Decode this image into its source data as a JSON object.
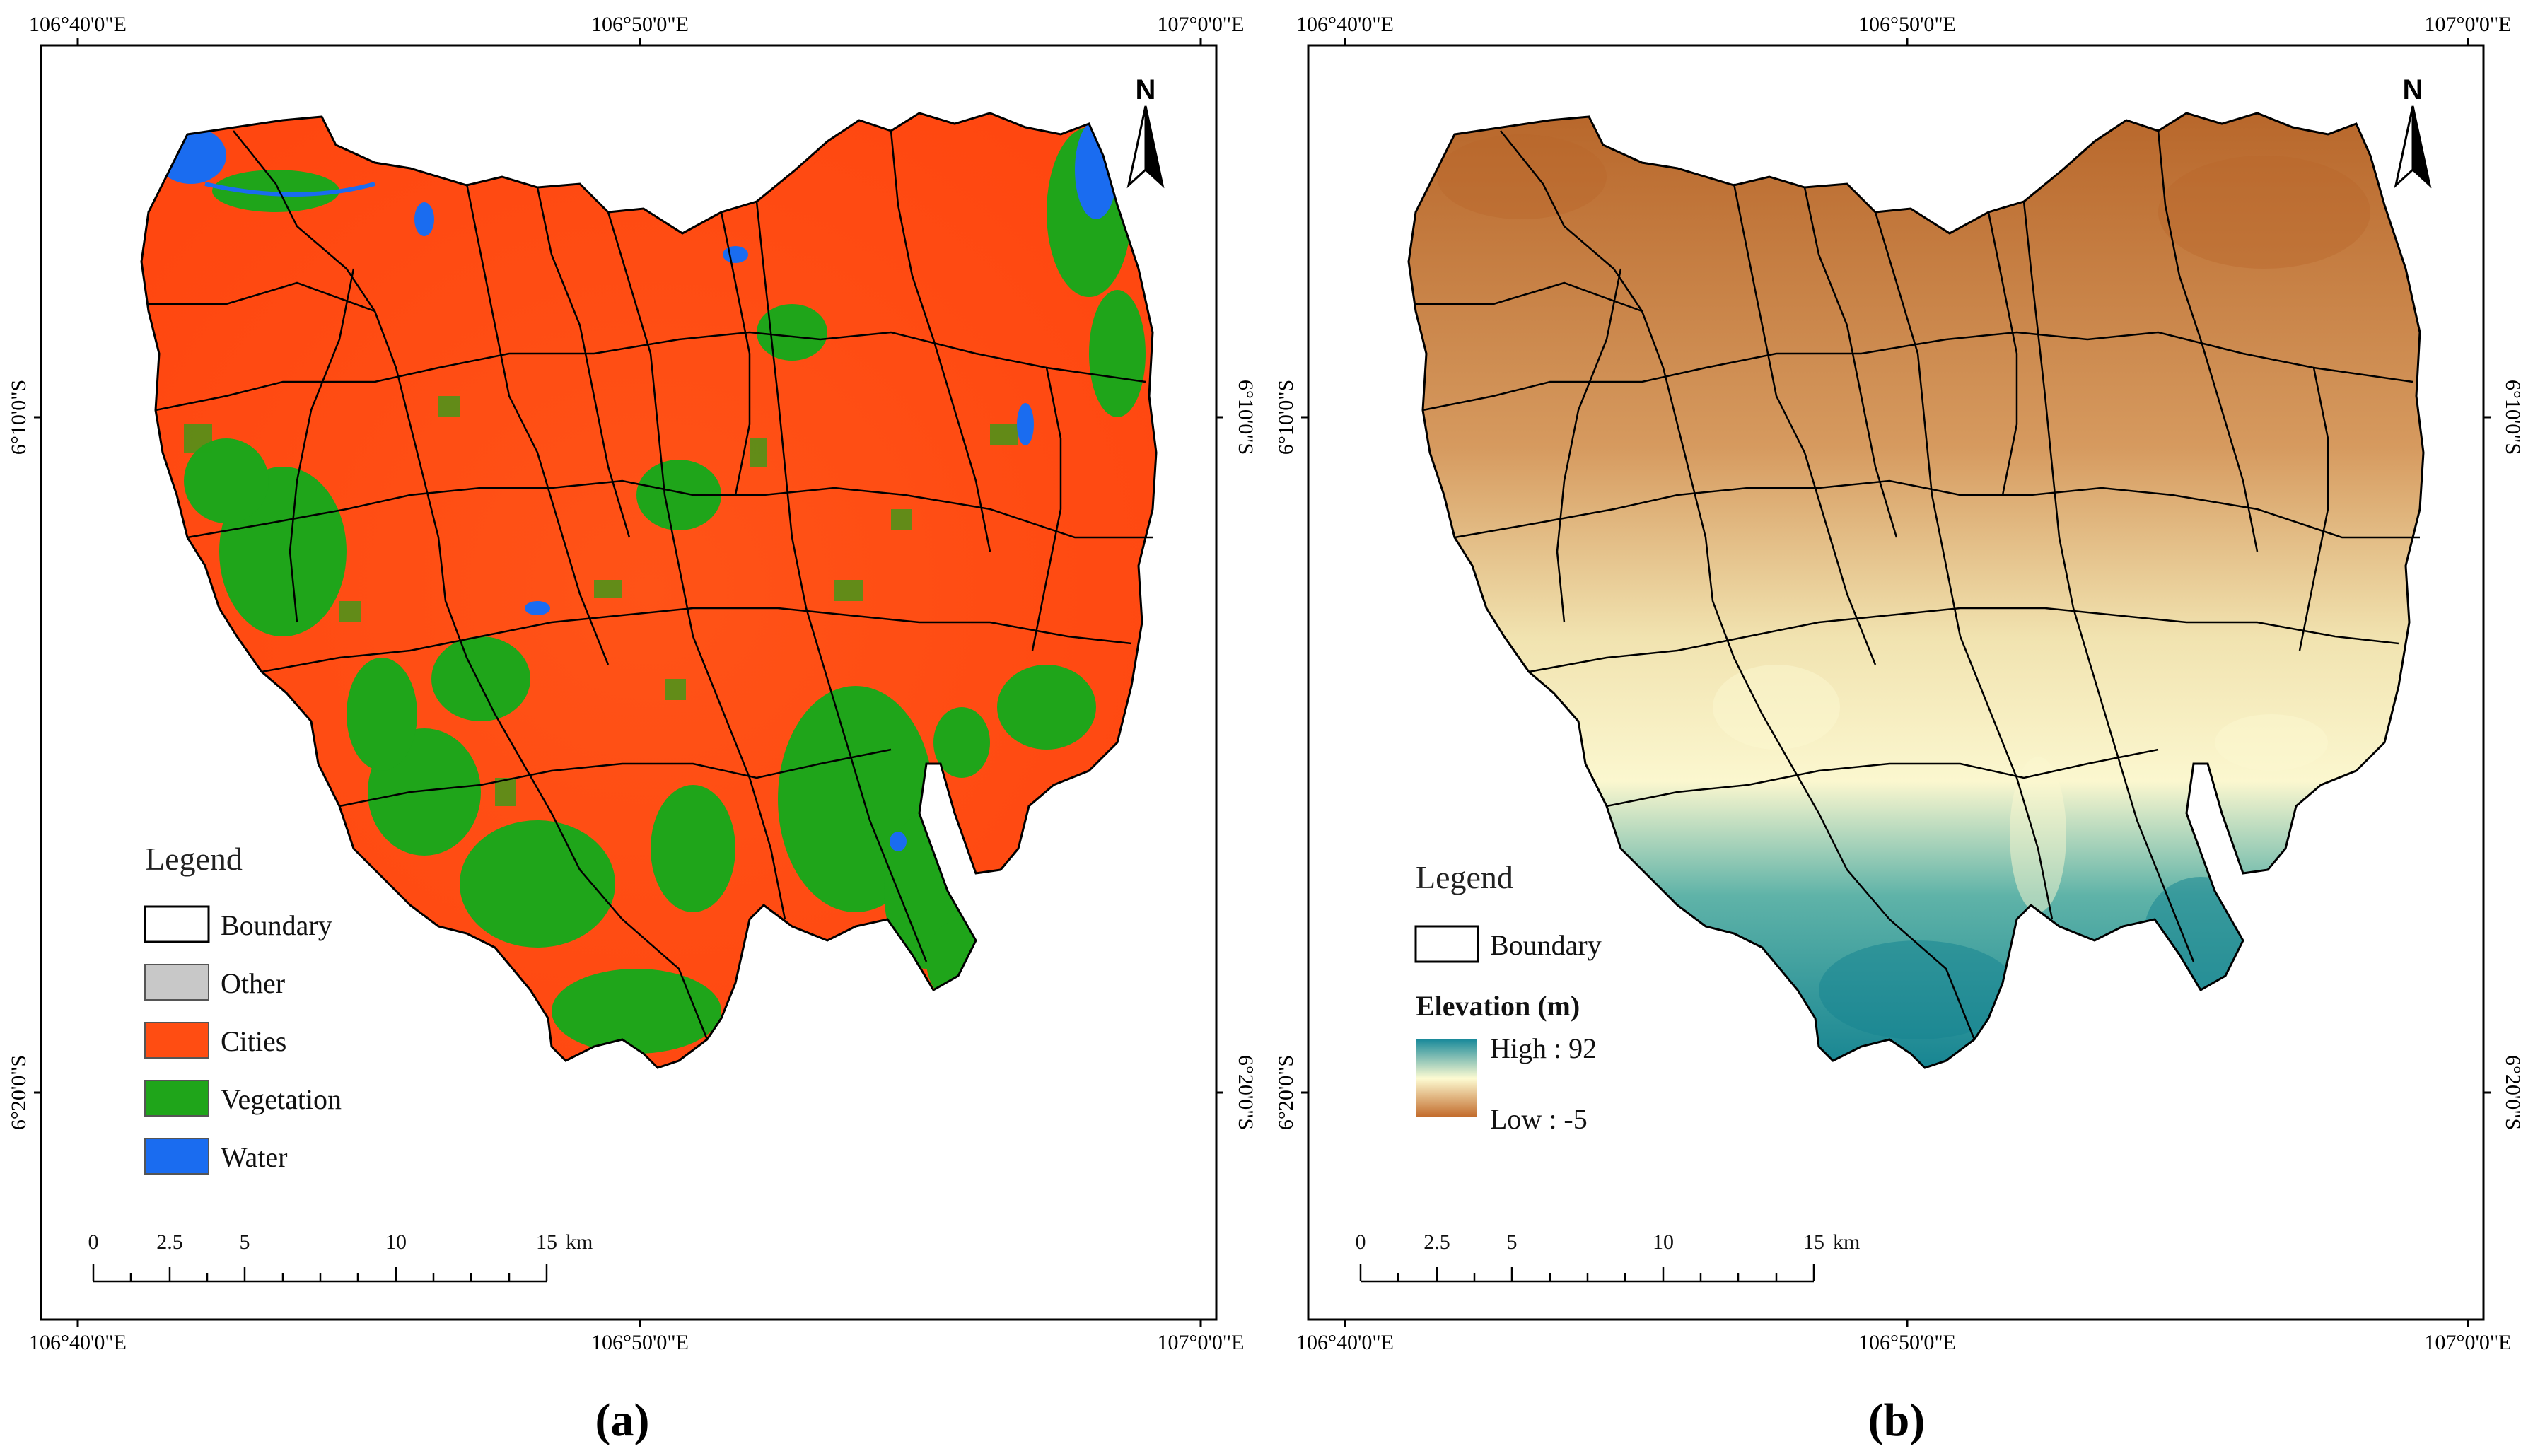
{
  "panels": [
    {
      "label": "(a)",
      "coords_top": [
        "106°40'0\"E",
        "106°50'0\"E",
        "107°0'0\"E"
      ],
      "coords_bottom": [
        "106°40'0\"E",
        "106°50'0\"E",
        "107°0'0\"E"
      ],
      "coords_left": [
        "6°10'0\"S",
        "6°20'0\"S"
      ],
      "coords_right": [
        "6°10'0\"S",
        "6°20'0\"S"
      ],
      "north_label": "N",
      "legend": {
        "title": "Legend",
        "items": [
          {
            "label": "Boundary",
            "color": "#ffffff"
          },
          {
            "label": "Other",
            "color": "#c8c8c8"
          },
          {
            "label": "Cities",
            "color": "#ff4d12"
          },
          {
            "label": "Vegetation",
            "color": "#1fa51a"
          },
          {
            "label": "Water",
            "color": "#1a6cf0"
          }
        ]
      },
      "scale": {
        "ticks": [
          "0",
          "2.5",
          "5",
          "10",
          "15"
        ],
        "unit": "km"
      }
    },
    {
      "label": "(b)",
      "coords_top": [
        "106°40'0\"E",
        "106°50'0\"E",
        "107°0'0\"E"
      ],
      "coords_bottom": [
        "106°40'0\"E",
        "106°50'0\"E",
        "107°0'0\"E"
      ],
      "coords_left": [
        "6°10'0\"S",
        "6°20'0\"S"
      ],
      "coords_right": [
        "6°10'0\"S",
        "6°20'0\"S"
      ],
      "north_label": "N",
      "legend": {
        "title": "Legend",
        "items": [
          {
            "label": "Boundary",
            "color": "#ffffff"
          }
        ],
        "ramp_title": "Elevation (m)",
        "ramp_high": "High : 92",
        "ramp_low": "Low : -5",
        "ramp_colors": [
          "#1a8a9a",
          "#fdfbd2",
          "#c26a2a"
        ]
      },
      "scale": {
        "ticks": [
          "0",
          "2.5",
          "5",
          "10",
          "15"
        ],
        "unit": "km"
      }
    }
  ]
}
